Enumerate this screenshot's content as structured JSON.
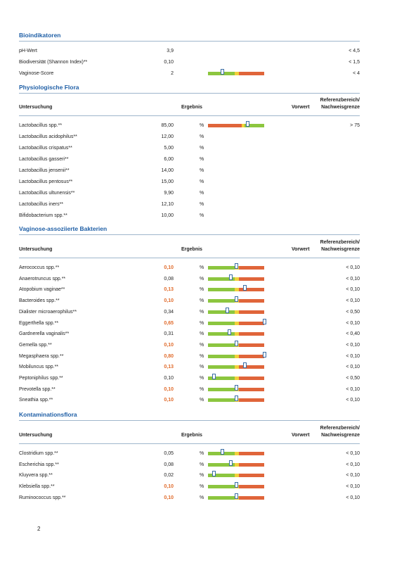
{
  "colors": {
    "accent": "#1f5fa6",
    "high_value": "#e06a2a",
    "bar_green": "#8cc63f",
    "bar_yellow": "#f2d03b",
    "bar_red": "#e0653a"
  },
  "sections": {
    "bio": {
      "title": "Bioindikatoren",
      "rows": [
        {
          "name": "pH-Wert",
          "value": "3,9",
          "ref": "< 4,5"
        },
        {
          "name": "Biodiversität (Shannon Index)**",
          "value": "0,10",
          "ref": "< 1,5"
        },
        {
          "name": "Vaginose-Score",
          "value": "2",
          "ref": "< 4"
        }
      ]
    },
    "flora": {
      "title": "Physiologische Flora",
      "rows": [
        {
          "name": "Lactobacillus spp.**",
          "value": "85,00",
          "unit": "%",
          "ref": "> 75"
        },
        {
          "name": "Lactobacillus acidophilus**",
          "value": "12,00",
          "unit": "%",
          "ref": ""
        },
        {
          "name": "Lactobacillus crispatus**",
          "value": "5,00",
          "unit": "%",
          "ref": ""
        },
        {
          "name": "Lactobacillus gasseri**",
          "value": "6,00",
          "unit": "%",
          "ref": ""
        },
        {
          "name": "Lactobacillus jensenii**",
          "value": "14,00",
          "unit": "%",
          "ref": ""
        },
        {
          "name": "Lactobacillus pentosus**",
          "value": "15,00",
          "unit": "%",
          "ref": ""
        },
        {
          "name": "Lactobacillus ultunensis**",
          "value": "9,90",
          "unit": "%",
          "ref": ""
        },
        {
          "name": "Lactobacillus iners**",
          "value": "12,10",
          "unit": "%",
          "ref": ""
        },
        {
          "name": "Bifidobacterium spp.**",
          "value": "10,00",
          "unit": "%",
          "ref": ""
        }
      ]
    },
    "vag": {
      "title": "Vaginose-assoziierte Bakterien",
      "rows": [
        {
          "name": "Aerococcus spp.**",
          "value": "0,10",
          "hi": true,
          "unit": "%",
          "ref": "< 0,10"
        },
        {
          "name": "Anaerotruncus spp.**",
          "value": "0,08",
          "unit": "%",
          "ref": "< 0,10"
        },
        {
          "name": "Atopobium vaginae**",
          "value": "0,13",
          "hi": true,
          "unit": "%",
          "ref": "< 0,10"
        },
        {
          "name": "Bacteroides spp.**",
          "value": "0,10",
          "hi": true,
          "unit": "%",
          "ref": "< 0,10"
        },
        {
          "name": "Dialister microaerophilus**",
          "value": "0,34",
          "unit": "%",
          "ref": "< 0,50"
        },
        {
          "name": "Eggerthella spp.**",
          "value": "0,65",
          "hi": true,
          "unit": "%",
          "ref": "< 0,10"
        },
        {
          "name": "Gardnerella vaginalis**",
          "value": "0,31",
          "unit": "%",
          "ref": "< 0,40"
        },
        {
          "name": "Gemella spp.**",
          "value": "0,10",
          "hi": true,
          "unit": "%",
          "ref": "< 0,10"
        },
        {
          "name": "Megasphaera spp.**",
          "value": "0,80",
          "hi": true,
          "unit": "%",
          "ref": "< 0,10"
        },
        {
          "name": "Mobiluncus spp.**",
          "value": "0,13",
          "hi": true,
          "unit": "%",
          "ref": "< 0,10"
        },
        {
          "name": "Peptoniphilus spp.**",
          "value": "0,10",
          "unit": "%",
          "ref": "< 0,50"
        },
        {
          "name": "Prevotella spp.**",
          "value": "0,10",
          "hi": true,
          "unit": "%",
          "ref": "< 0,10"
        },
        {
          "name": "Sneathia spp.**",
          "value": "0,10",
          "hi": true,
          "unit": "%",
          "ref": "< 0,10"
        }
      ]
    },
    "kont": {
      "title": "Kontaminationsflora",
      "rows": [
        {
          "name": "Clostridium spp.**",
          "value": "0,05",
          "unit": "%",
          "ref": "< 0,10"
        },
        {
          "name": "Escherichia spp.**",
          "value": "0,08",
          "unit": "%",
          "ref": "< 0,10"
        },
        {
          "name": "Kluyvera spp.**",
          "value": "0,02",
          "unit": "%",
          "ref": "< 0,10"
        },
        {
          "name": "Klebsiella spp.**",
          "value": "0,10",
          "hi": true,
          "unit": "%",
          "ref": "< 0,10"
        },
        {
          "name": "Ruminococcus spp.**",
          "value": "0,10",
          "hi": true,
          "unit": "%",
          "ref": "< 0,10"
        }
      ]
    }
  },
  "table_header": {
    "untersuchung": "Untersuchung",
    "ergebnis": "Ergebnis",
    "vorwert": "Vorwert",
    "ref_line1": "Referenzbereich/",
    "ref_line2": "Nachweisgrenze"
  },
  "bar_levels": {
    "bio": [
      null,
      null,
      0.25
    ],
    "flora": [
      0.7,
      null,
      null,
      null,
      null,
      null,
      null,
      null,
      null
    ],
    "vag": [
      0.5,
      0.4,
      0.65,
      0.5,
      0.34,
      1.0,
      0.38,
      0.5,
      1.0,
      0.65,
      0.1,
      0.5,
      0.5
    ],
    "kont": [
      0.25,
      0.4,
      0.1,
      0.5,
      0.5
    ]
  },
  "page_number": "2"
}
